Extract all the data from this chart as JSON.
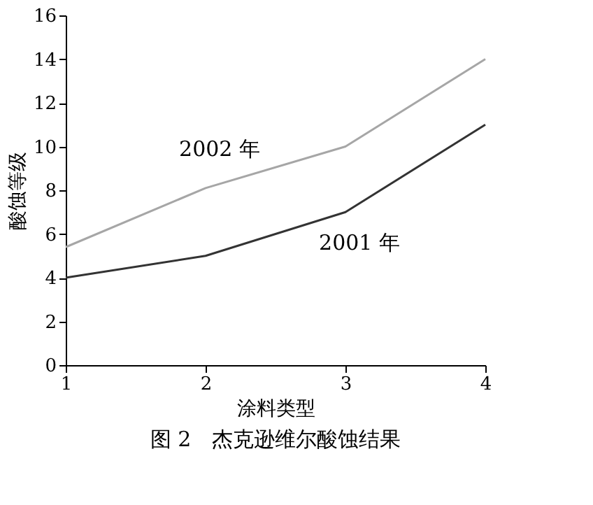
{
  "chart_data": {
    "type": "line",
    "title": "图 2　杰克逊维尔酸蚀结果",
    "xlabel": "涂料类型",
    "ylabel": "酸蚀等级",
    "x": [
      1,
      2,
      3,
      4
    ],
    "series": [
      {
        "name": "2002 年",
        "color": "#a6a6a6",
        "values": [
          5.4,
          8.1,
          10,
          14
        ]
      },
      {
        "name": "2001 年",
        "color": "#333333",
        "values": [
          4,
          5,
          7,
          11
        ]
      }
    ],
    "xlim": [
      1,
      4
    ],
    "xticks": [
      1,
      2,
      3,
      4
    ],
    "ylim": [
      0,
      16
    ],
    "yticks": [
      0,
      2,
      4,
      6,
      8,
      10,
      12,
      14,
      16
    ],
    "grid": false,
    "legend": false,
    "marker": "none",
    "line_style": "solid"
  }
}
